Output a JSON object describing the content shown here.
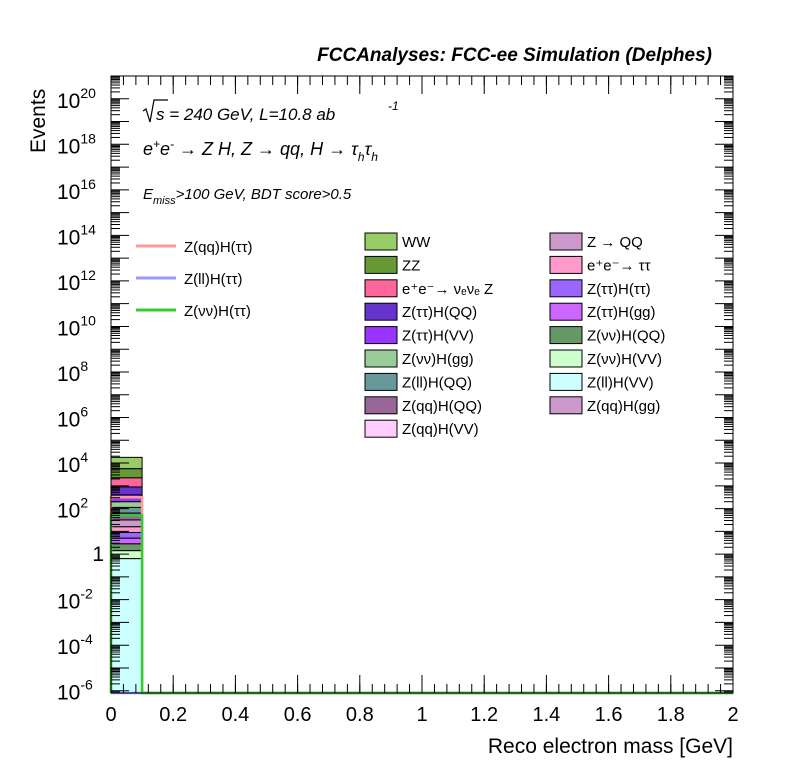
{
  "header": {
    "title": "FCCAnalyses: FCC-ee Simulation (Delphes)"
  },
  "annotations": {
    "sqrt": "s",
    "energy_lumi": " = 240 GeV, L=10.8 ab",
    "lumi_exp": "-1",
    "process": {
      "p1": "e",
      "p1_sup": "+",
      "p2": "e",
      "p2_sup": "-",
      "rest1": " → Z H, Z  → qq, H  → τ",
      "h1": "h",
      "tau2": "τ",
      "h2": "h"
    },
    "cut": {
      "e": "E",
      "sub": "miss",
      "rest": ">100 GeV, BDT score>0.5"
    }
  },
  "chart_data": {
    "type": "bar",
    "title": "FCCAnalyses: FCC-ee Simulation (Delphes)",
    "xlabel": "Reco electron mass [GeV]",
    "ylabel": "Events",
    "xlim": [
      0,
      2
    ],
    "ylim_log10": [
      -6.1,
      21
    ],
    "log_y": true,
    "grid": false,
    "x_ticks": [
      "0",
      "0.2",
      "0.4",
      "0.6",
      "0.8",
      "1",
      "1.2",
      "1.4",
      "1.6",
      "1.8",
      "2"
    ],
    "y_ticks": [
      {
        "base": "10",
        "exp": "-6",
        "v": -6
      },
      {
        "base": "10",
        "exp": "-4",
        "v": -4
      },
      {
        "base": "10",
        "exp": "-2",
        "v": -2
      },
      {
        "base": "1",
        "exp": "",
        "v": 0
      },
      {
        "base": "10",
        "exp": "2",
        "v": 2
      },
      {
        "base": "10",
        "exp": "4",
        "v": 4
      },
      {
        "base": "10",
        "exp": "6",
        "v": 6
      },
      {
        "base": "10",
        "exp": "8",
        "v": 8
      },
      {
        "base": "10",
        "exp": "10",
        "v": 10
      },
      {
        "base": "10",
        "exp": "12",
        "v": 12
      },
      {
        "base": "10",
        "exp": "14",
        "v": 14
      },
      {
        "base": "10",
        "exp": "16",
        "v": 16
      },
      {
        "base": "10",
        "exp": "18",
        "v": 18
      },
      {
        "base": "10",
        "exp": "20",
        "v": 20
      }
    ],
    "bin": [
      0,
      0.1
    ],
    "stack_log10_boundaries": [
      4.25,
      3.75,
      3.35,
      2.95,
      2.6,
      2.3,
      2.05,
      1.8,
      1.5,
      1.2,
      0.95,
      0.7,
      0.45,
      0.15,
      -0.2,
      -6.1
    ],
    "stack_colors": [
      "#99cc66",
      "#669933",
      "#ff6699",
      "#6633cc",
      "#9933ff",
      "#99cc99",
      "#669999",
      "#996699",
      "#cc99cc",
      "#ff99cc",
      "#9966ff",
      "#cc66ff",
      "#669966",
      "#ccffcc",
      "#ccffff"
    ],
    "legend_placement": "top",
    "signals": [
      {
        "name": "Z(qq)H(ττ)",
        "color": "#ff9999",
        "log10": 2.5
      },
      {
        "name": "Z(ll)H(ττ)",
        "color": "#9999ff",
        "log10": -6.1
      },
      {
        "name": "Z(νν)H(ττ)",
        "color": "#33cc33",
        "log10": 1.7
      }
    ],
    "backgrounds": [
      {
        "name": "WW",
        "color": "#99cc66"
      },
      {
        "name": "ZZ",
        "color": "#669933"
      },
      {
        "name": "e⁺e⁻→ νₑνₑ Z",
        "color": "#ff6699"
      },
      {
        "name": "Z(ττ)H(QQ)",
        "color": "#6633cc"
      },
      {
        "name": "Z(ττ)H(VV)",
        "color": "#9933ff"
      },
      {
        "name": "Z(νν)H(gg)",
        "color": "#99cc99"
      },
      {
        "name": "Z(ll)H(QQ)",
        "color": "#669999"
      },
      {
        "name": "Z(qq)H(QQ)",
        "color": "#996699"
      },
      {
        "name": "Z(qq)H(VV)",
        "color": "#ffccff"
      },
      {
        "name": "Z → QQ",
        "color": "#cc99cc"
      },
      {
        "name": "e⁺e⁻→ ττ",
        "color": "#ff99cc"
      },
      {
        "name": "Z(ττ)H(ττ)",
        "color": "#9966ff"
      },
      {
        "name": "Z(ττ)H(gg)",
        "color": "#cc66ff"
      },
      {
        "name": "Z(νν)H(QQ)",
        "color": "#669966"
      },
      {
        "name": "Z(νν)H(VV)",
        "color": "#ccffcc"
      },
      {
        "name": "Z(ll)H(VV)",
        "color": "#ccffff"
      },
      {
        "name": "Z(qq)H(gg)",
        "color": "#cc99cc"
      }
    ]
  }
}
